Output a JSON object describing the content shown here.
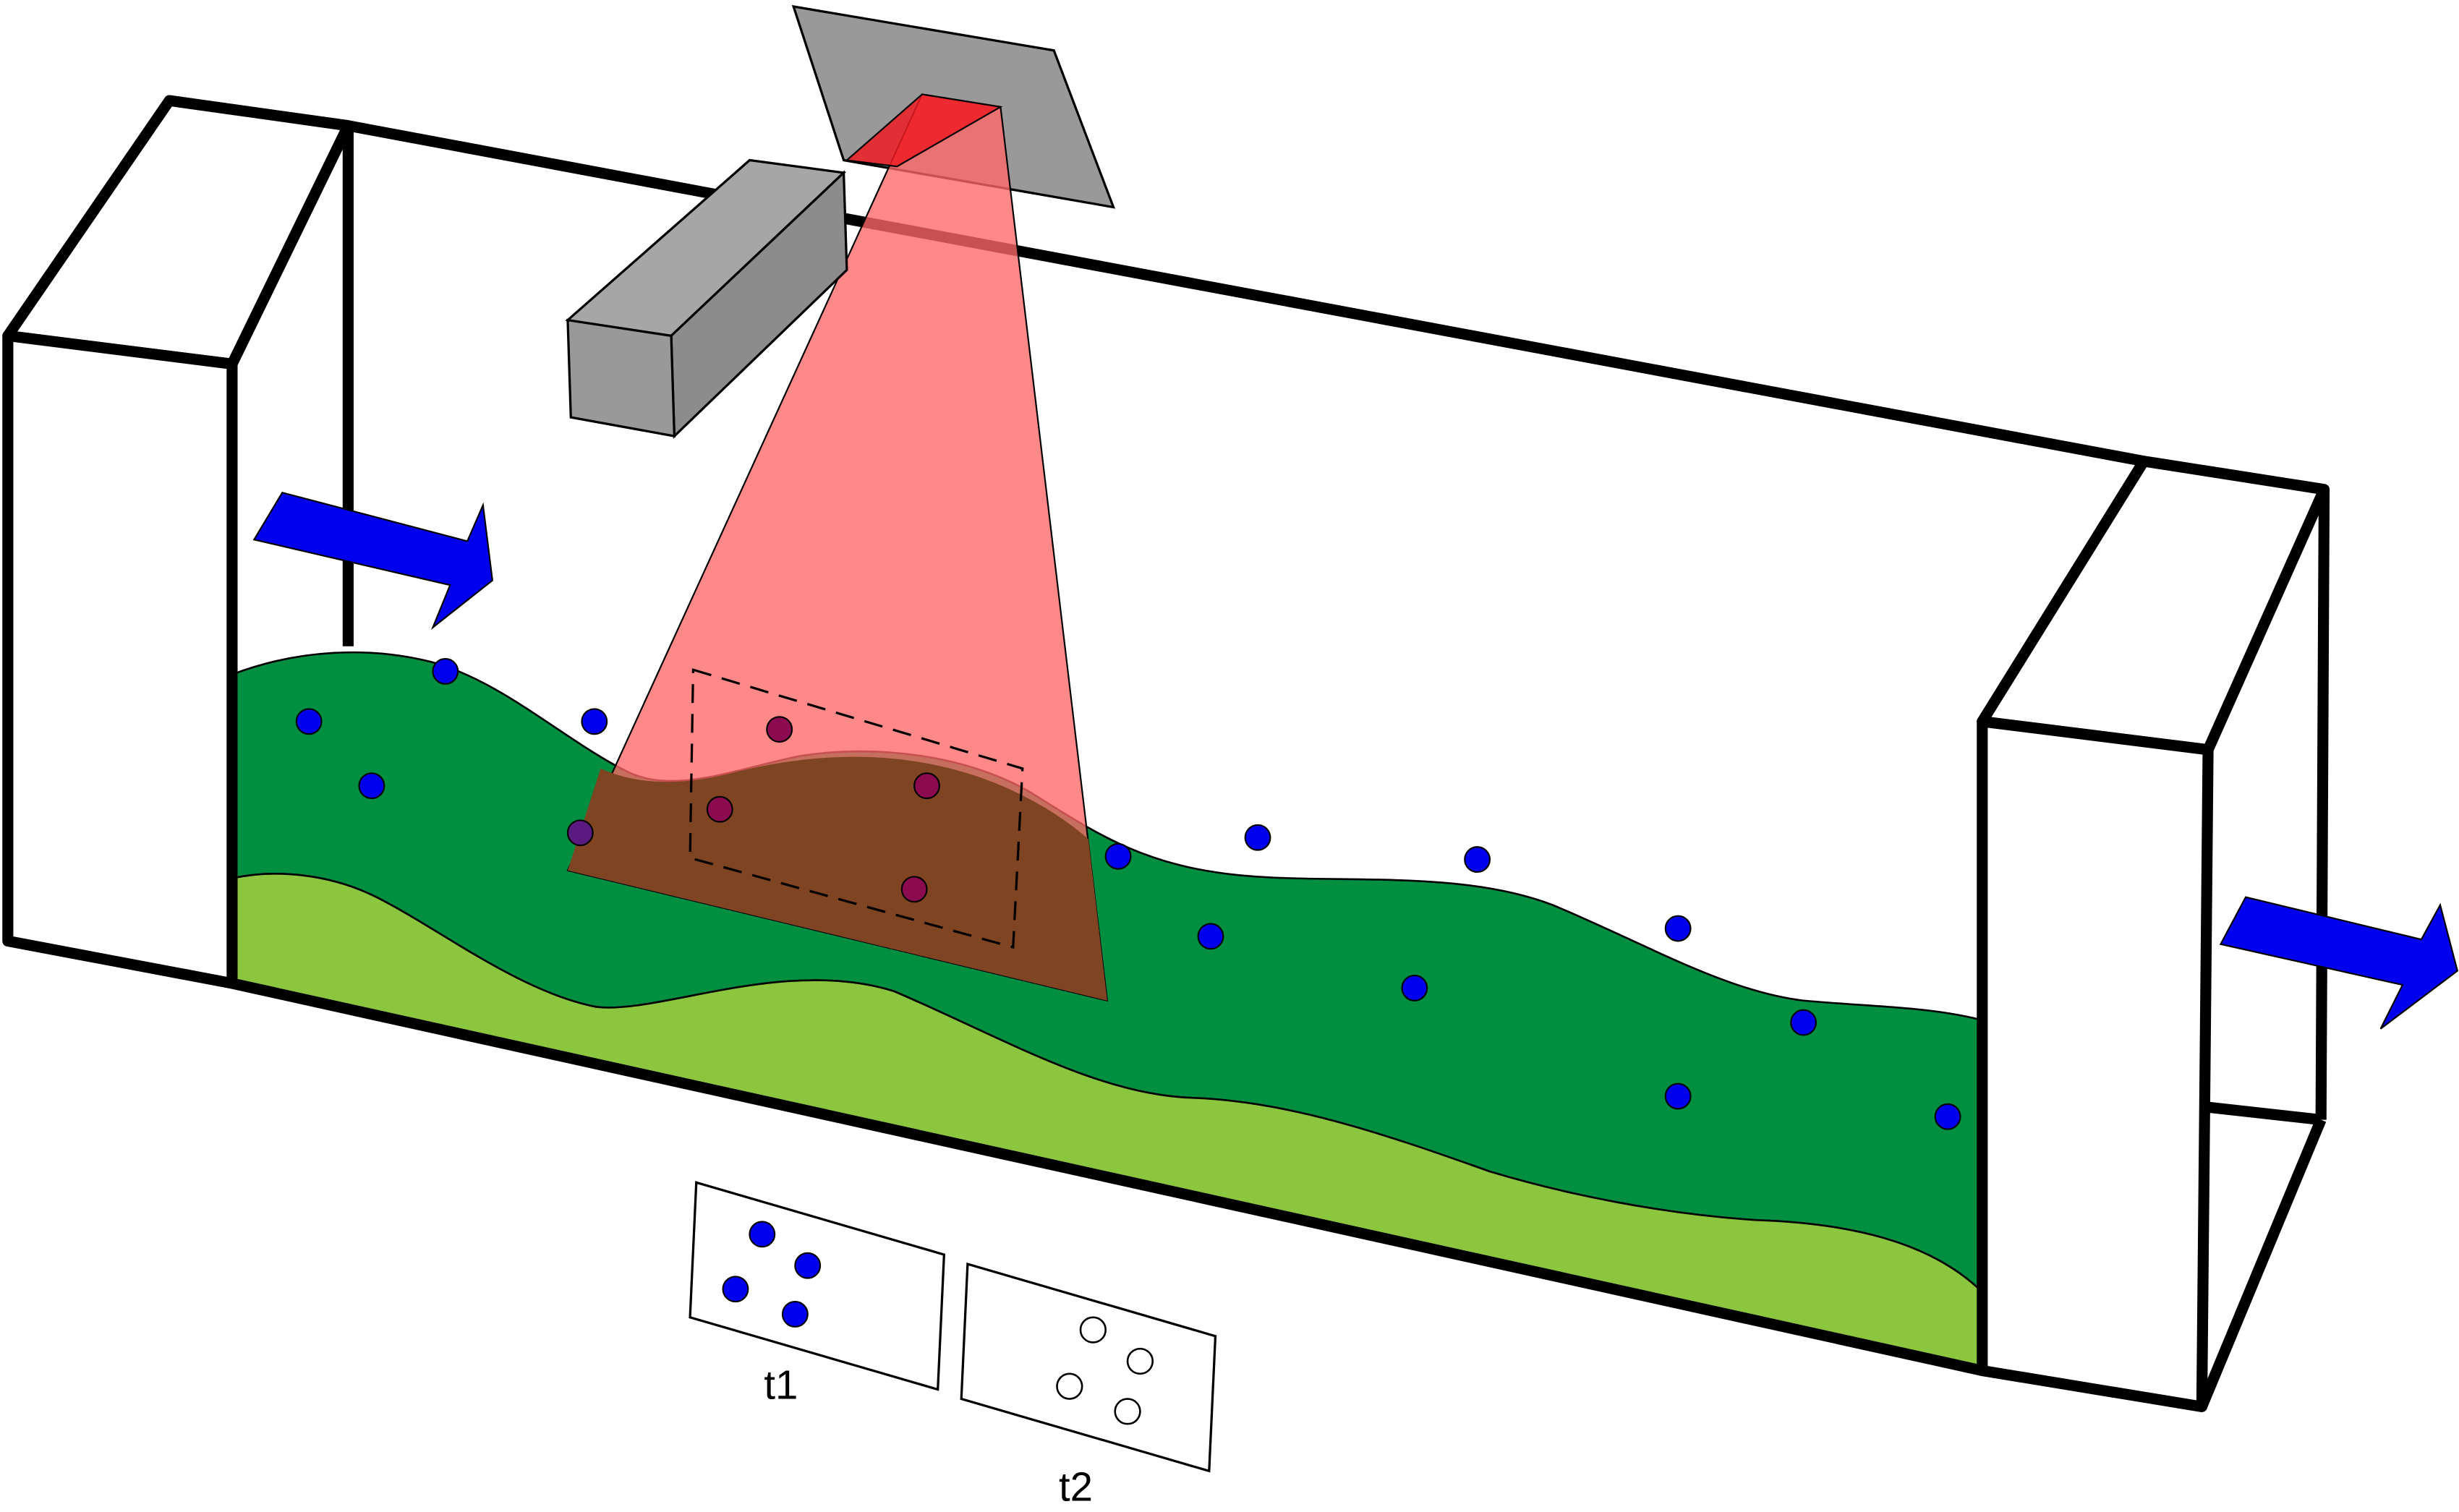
{
  "colors": {
    "water_layer": "#008f41",
    "sediment_layer": "#8cc63f",
    "particle": "#0000ee",
    "flow_arrow": "#0000ee",
    "laser_beam": "#ff6666",
    "laser_source": "#ee1c24",
    "camera": "#999999",
    "beam_overlap": "#7f4422",
    "overlap_particle": "#8b0a50",
    "outline": "#000000"
  },
  "labels": {
    "frame_1": "t1",
    "frame_2": "t2"
  },
  "icons": {
    "flow_in": "arrow-right-icon",
    "flow_out": "arrow-right-icon",
    "camera": "camera-box",
    "laser": "laser-sheet"
  }
}
